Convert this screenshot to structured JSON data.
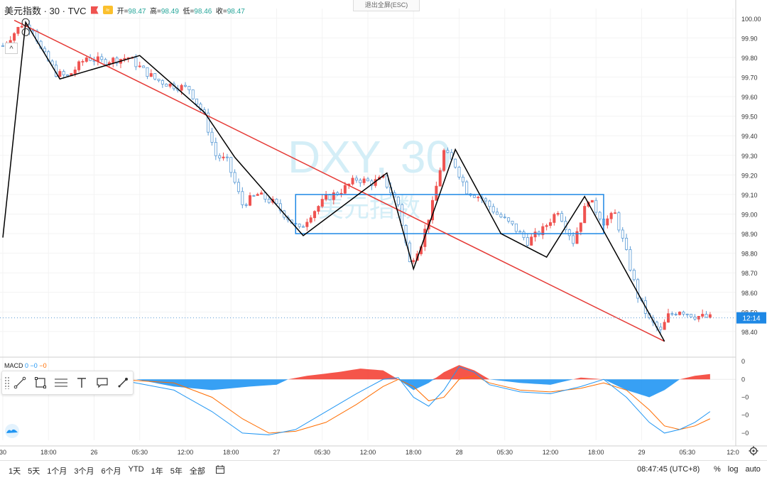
{
  "header": {
    "symbol": "美元指数 · 30 · TVC",
    "ohlc": [
      {
        "label": "开",
        "value": "98.47"
      },
      {
        "label": "高",
        "value": "98.49"
      },
      {
        "label": "低",
        "value": "98.46"
      },
      {
        "label": "收",
        "value": "98.47"
      }
    ],
    "exit_fullscreen": "退出全屏(ESC)"
  },
  "watermark": {
    "main": "DXY, 30",
    "sub": "美元指数"
  },
  "collapse_label": "^",
  "chart_data": {
    "type": "candlestick",
    "price_range": [
      98.28,
      100.05
    ],
    "y_ticks": [
      "100.00",
      "99.90",
      "99.80",
      "99.70",
      "99.60",
      "99.50",
      "99.40",
      "99.30",
      "99.20",
      "99.10",
      "99.00",
      "98.90",
      "98.80",
      "98.70",
      "98.60",
      "98.50",
      "98.40"
    ],
    "current_price_label": "12:14",
    "current_price": 98.47,
    "x_labels": [
      {
        "label": "30",
        "bar": 0
      },
      {
        "label": "18:00",
        "bar": 12
      },
      {
        "label": "26",
        "bar": 24
      },
      {
        "label": "05:30",
        "bar": 36
      },
      {
        "label": "12:00",
        "bar": 48
      },
      {
        "label": "18:00",
        "bar": 60
      },
      {
        "label": "27",
        "bar": 72
      },
      {
        "label": "05:30",
        "bar": 84
      },
      {
        "label": "12:00",
        "bar": 96
      },
      {
        "label": "18:00",
        "bar": 108
      },
      {
        "label": "28",
        "bar": 120
      },
      {
        "label": "05:30",
        "bar": 132
      },
      {
        "label": "12:00",
        "bar": 144
      },
      {
        "label": "18:00",
        "bar": 156
      },
      {
        "label": "29",
        "bar": 168
      },
      {
        "label": "05:30",
        "bar": 180
      },
      {
        "label": "12:0",
        "bar": 192
      }
    ],
    "bar_count": 192,
    "price_anchors": [
      [
        0,
        99.86
      ],
      [
        5,
        99.97
      ],
      [
        8,
        99.95
      ],
      [
        10,
        99.84
      ],
      [
        14,
        99.72
      ],
      [
        17,
        99.7
      ],
      [
        19,
        99.74
      ],
      [
        22,
        99.8
      ],
      [
        26,
        99.78
      ],
      [
        30,
        99.79
      ],
      [
        33,
        99.8
      ],
      [
        36,
        99.75
      ],
      [
        40,
        99.69
      ],
      [
        44,
        99.66
      ],
      [
        49,
        99.64
      ],
      [
        53,
        99.5
      ],
      [
        56,
        99.3
      ],
      [
        59,
        99.27
      ],
      [
        63,
        99.05
      ],
      [
        67,
        99.1
      ],
      [
        71,
        99.06
      ],
      [
        75,
        98.98
      ],
      [
        78,
        98.92
      ],
      [
        81,
        99.0
      ],
      [
        85,
        99.08
      ],
      [
        89,
        99.12
      ],
      [
        93,
        99.18
      ],
      [
        97,
        99.16
      ],
      [
        100,
        99.18
      ],
      [
        104,
        99.05
      ],
      [
        107,
        98.75
      ],
      [
        110,
        98.85
      ],
      [
        113,
        99.05
      ],
      [
        116,
        99.32
      ],
      [
        119,
        99.25
      ],
      [
        122,
        99.12
      ],
      [
        126,
        99.08
      ],
      [
        130,
        99.0
      ],
      [
        134,
        98.94
      ],
      [
        138,
        98.86
      ],
      [
        142,
        98.92
      ],
      [
        146,
        99.02
      ],
      [
        150,
        98.86
      ],
      [
        154,
        99.08
      ],
      [
        158,
        98.96
      ],
      [
        161,
        99.0
      ],
      [
        164,
        98.8
      ],
      [
        167,
        98.58
      ],
      [
        170,
        98.46
      ],
      [
        173,
        98.4
      ],
      [
        175,
        98.48
      ],
      [
        178,
        98.51
      ],
      [
        182,
        98.48
      ],
      [
        186,
        98.47
      ]
    ],
    "zigzag": [
      [
        98.88,
        0
      ],
      [
        99.98,
        6
      ],
      [
        99.69,
        15
      ],
      [
        99.81,
        36
      ],
      [
        99.52,
        53
      ],
      [
        99.29,
        61
      ],
      [
        98.89,
        79
      ],
      [
        99.21,
        101
      ],
      [
        98.72,
        108
      ],
      [
        99.33,
        119
      ],
      [
        98.9,
        131
      ],
      [
        98.78,
        143
      ],
      [
        99.09,
        153
      ],
      [
        98.35,
        174
      ]
    ],
    "trend_line": {
      "from": [
        99.99,
        3
      ],
      "to": [
        98.35,
        174
      ]
    },
    "box": {
      "bar_start": 77,
      "bar_end": 158,
      "price_high": 99.1,
      "price_low": 98.9
    },
    "macd": {
      "label": "MACD",
      "params": [
        {
          "value": "0",
          "color": "#2196f3"
        },
        {
          "value": "−0",
          "color": "#2196f3"
        },
        {
          "value": "−0",
          "color": "#ff6d00"
        }
      ],
      "range": [
        -0.034,
        0.012
      ],
      "y_ticks": [
        {
          "label": "0",
          "value": 0.01
        },
        {
          "label": "0",
          "value": 0
        },
        {
          "label": "−0",
          "value": -0.01
        },
        {
          "label": "−0",
          "value": -0.02
        },
        {
          "label": "−0",
          "value": -0.03
        }
      ],
      "hist_anchors": [
        [
          0,
          0
        ],
        [
          35,
          0
        ],
        [
          45,
          -0.004
        ],
        [
          55,
          -0.006
        ],
        [
          65,
          -0.004
        ],
        [
          72,
          -0.003
        ],
        [
          75,
          0
        ],
        [
          80,
          0.002
        ],
        [
          88,
          0.004
        ],
        [
          94,
          0.006
        ],
        [
          100,
          0.005
        ],
        [
          104,
          0
        ],
        [
          108,
          -0.006
        ],
        [
          112,
          -0.002
        ],
        [
          116,
          0.004
        ],
        [
          120,
          0.008
        ],
        [
          124,
          0.005
        ],
        [
          128,
          0
        ],
        [
          136,
          -0.002
        ],
        [
          144,
          -0.003
        ],
        [
          152,
          0.001
        ],
        [
          158,
          0
        ],
        [
          164,
          -0.006
        ],
        [
          170,
          -0.01
        ],
        [
          174,
          -0.006
        ],
        [
          178,
          0
        ],
        [
          182,
          0.002
        ],
        [
          186,
          0.003
        ]
      ],
      "macd_line": [
        [
          0,
          0
        ],
        [
          30,
          0
        ],
        [
          45,
          -0.006
        ],
        [
          55,
          -0.018
        ],
        [
          63,
          -0.03
        ],
        [
          70,
          -0.031
        ],
        [
          77,
          -0.028
        ],
        [
          85,
          -0.018
        ],
        [
          93,
          -0.008
        ],
        [
          100,
          0
        ],
        [
          104,
          0.001
        ],
        [
          108,
          -0.01
        ],
        [
          112,
          -0.015
        ],
        [
          116,
          -0.006
        ],
        [
          120,
          0.007
        ],
        [
          124,
          0.004
        ],
        [
          128,
          -0.003
        ],
        [
          136,
          -0.007
        ],
        [
          144,
          -0.008
        ],
        [
          152,
          -0.004
        ],
        [
          158,
          0
        ],
        [
          164,
          -0.01
        ],
        [
          170,
          -0.024
        ],
        [
          174,
          -0.03
        ],
        [
          178,
          -0.028
        ],
        [
          182,
          -0.024
        ],
        [
          186,
          -0.018
        ]
      ],
      "signal_line": [
        [
          0,
          0
        ],
        [
          30,
          0
        ],
        [
          45,
          -0.002
        ],
        [
          55,
          -0.01
        ],
        [
          63,
          -0.022
        ],
        [
          70,
          -0.03
        ],
        [
          77,
          -0.029
        ],
        [
          85,
          -0.024
        ],
        [
          93,
          -0.014
        ],
        [
          100,
          -0.004
        ],
        [
          104,
          0
        ],
        [
          108,
          -0.004
        ],
        [
          112,
          -0.012
        ],
        [
          116,
          -0.01
        ],
        [
          120,
          0
        ],
        [
          124,
          0.002
        ],
        [
          128,
          -0.002
        ],
        [
          136,
          -0.006
        ],
        [
          144,
          -0.007
        ],
        [
          152,
          -0.005
        ],
        [
          158,
          -0.002
        ],
        [
          164,
          -0.006
        ],
        [
          170,
          -0.017
        ],
        [
          174,
          -0.026
        ],
        [
          178,
          -0.028
        ],
        [
          182,
          -0.026
        ],
        [
          186,
          -0.022
        ]
      ]
    }
  },
  "drawing_tools": [
    {
      "icon": "trend-line-tool-icon"
    },
    {
      "icon": "rectangle-tool-icon"
    },
    {
      "icon": "fib-tool-icon"
    },
    {
      "icon": "text-tool-icon"
    },
    {
      "icon": "callout-tool-icon"
    },
    {
      "icon": "brush-tool-icon"
    }
  ],
  "bottom_bar": {
    "ranges": [
      "1天",
      "5天",
      "1个月",
      "3个月",
      "6个月",
      "YTD",
      "1年",
      "5年",
      "全部"
    ],
    "clock": "08:47:45 (UTC+8)",
    "options": [
      "%",
      "log",
      "auto"
    ]
  },
  "colors": {
    "up": "#ef5350",
    "down": "#5b9bd5",
    "zigzag": "#000000",
    "trend": "#e53935",
    "box": "#1e88e5",
    "macd": "#2196f3",
    "signal": "#ff6d00"
  }
}
